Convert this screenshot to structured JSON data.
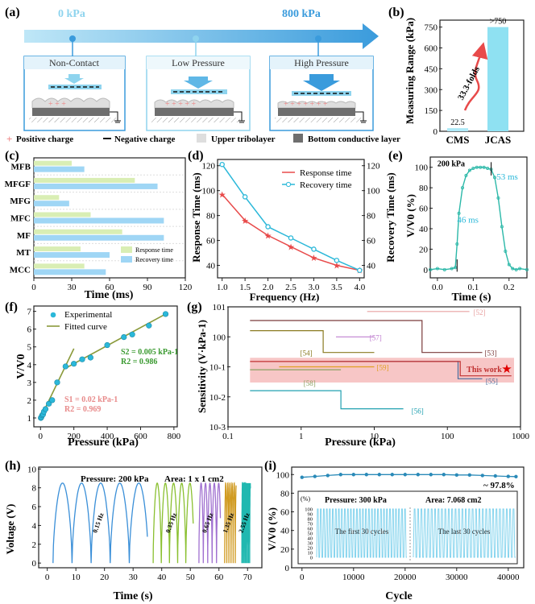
{
  "panel_labels": [
    "(a)",
    "(b)",
    "(c)",
    "(d)",
    "(e)",
    "(f)",
    "(g)",
    "(h)",
    "(i)"
  ],
  "colors": {
    "cyan": "#2bb8d9",
    "light_cyan": "#8fe1f2",
    "blue_arrow": "#3a9bdc",
    "red": "#e84a4a",
    "green": "#3a9a30",
    "light_green": "#d9eeb4",
    "light_blue": "#9fd6f5",
    "pink_band": "#f6bcbc"
  },
  "panel_a": {
    "pressure_start": "0 kPa",
    "pressure_end": "800 kPa",
    "states": [
      "Non-Contact",
      "Low Pressure",
      "High Pressure"
    ],
    "legend": [
      "Positive charge",
      "Negative charge",
      "Upper tribolayer",
      "Bottom conductive layer"
    ]
  },
  "chart_data": [
    {
      "panel": "b",
      "type": "bar",
      "ylabel": "Measuring Range (kPa)",
      "categories": [
        "CMS",
        "JCAS"
      ],
      "values": [
        22.5,
        750
      ],
      "value_labels": [
        "22.5",
        ">750"
      ],
      "annotation": "33.3-folds",
      "ylim": [
        0,
        800
      ],
      "yticks": [
        "0",
        "150",
        "300",
        "450",
        "600",
        "750"
      ]
    },
    {
      "panel": "c",
      "type": "bar",
      "orientation": "horizontal",
      "xlabel": "Time (ms)",
      "xlim": [
        0,
        120
      ],
      "xticks": [
        "0",
        "30",
        "60",
        "90",
        "120"
      ],
      "categories": [
        "MFB",
        "MFGF",
        "MFG",
        "MFC",
        "MF",
        "MT",
        "MCC"
      ],
      "series": [
        {
          "name": "Response time",
          "values": [
            30,
            80,
            20,
            45,
            70,
            37,
            40
          ]
        },
        {
          "name": "Recovery time",
          "values": [
            40,
            98,
            28,
            103,
            103,
            60,
            57
          ]
        }
      ]
    },
    {
      "panel": "d",
      "type": "line",
      "xlabel": "Frequency (Hz)",
      "ylabel": "Response Time (ms)",
      "ylabel_right": "Recovery Time (ms)",
      "xlim": [
        0.9,
        4.1
      ],
      "ylim": [
        30,
        125
      ],
      "xticks": [
        "1.0",
        "1.5",
        "2.0",
        "2.5",
        "3.0",
        "3.5",
        "4.0"
      ],
      "yticks": [
        "40",
        "60",
        "80",
        "100",
        "120"
      ],
      "x": [
        1.0,
        1.5,
        2.0,
        2.5,
        3.0,
        3.5,
        4.0
      ],
      "series": [
        {
          "name": "Response time",
          "values": [
            97,
            76,
            64,
            55,
            46,
            40,
            36
          ]
        },
        {
          "name": "Recovery time",
          "values": [
            121,
            95,
            71,
            62,
            53,
            44,
            36
          ]
        }
      ]
    },
    {
      "panel": "e",
      "type": "line",
      "xlabel": "Time (s)",
      "ylabel": "V/V0 (%)",
      "xlim": [
        -0.02,
        0.25
      ],
      "ylim": [
        -8,
        110
      ],
      "xticks": [
        "0.0",
        "0.1",
        "0.2"
      ],
      "yticks": [
        "0",
        "20",
        "40",
        "60",
        "80",
        "100"
      ],
      "x": [
        -0.02,
        0.0,
        0.02,
        0.04,
        0.05,
        0.055,
        0.06,
        0.07,
        0.08,
        0.09,
        0.1,
        0.11,
        0.12,
        0.13,
        0.14,
        0.15,
        0.16,
        0.17,
        0.18,
        0.19,
        0.2,
        0.21,
        0.22,
        0.23,
        0.25
      ],
      "values": [
        0,
        1,
        0,
        1,
        2,
        25,
        55,
        80,
        92,
        97,
        99,
        100,
        100,
        100,
        99,
        98,
        90,
        70,
        42,
        18,
        5,
        1,
        0,
        1,
        0
      ],
      "annotations": [
        "200 kPa",
        "53 ms",
        "46 ms"
      ]
    },
    {
      "panel": "f",
      "type": "scatter",
      "xlabel": "Pressure (kPa)",
      "ylabel": "V/V0",
      "xlim": [
        -40,
        820
      ],
      "ylim": [
        0.5,
        7.3
      ],
      "xticks": [
        "0",
        "200",
        "400",
        "600",
        "800"
      ],
      "yticks": [
        "1",
        "2",
        "3",
        "4",
        "5",
        "6",
        "7"
      ],
      "x": [
        2,
        5,
        10,
        15,
        20,
        30,
        50,
        70,
        100,
        150,
        200,
        250,
        300,
        400,
        500,
        550,
        650,
        750
      ],
      "values": [
        1.0,
        1.05,
        1.15,
        1.2,
        1.35,
        1.5,
        1.8,
        2.0,
        3.0,
        3.9,
        4.05,
        4.3,
        4.4,
        5.1,
        5.55,
        5.7,
        6.2,
        6.85
      ],
      "legend": [
        "Experimental",
        "Fitted curve"
      ],
      "fits": [
        {
          "label": "S1 = 0.02 kPa-1",
          "r2": "R2 = 0.969"
        },
        {
          "label": "S2 = 0.005 kPa-1",
          "r2": "R2 = 0.986"
        }
      ]
    },
    {
      "panel": "g",
      "type": "line",
      "xscale": "log",
      "yscale": "log",
      "xlabel": "Pressure (kPa)",
      "ylabel": "Sensitivity (V·kPa-1)",
      "xlim": [
        0.1,
        1000
      ],
      "ylim": [
        0.001,
        10
      ],
      "xticks": [
        "0.1",
        "1",
        "10",
        "100",
        "1000"
      ],
      "yticks": [
        "10-3",
        "10-2",
        "10-1",
        "100",
        "101"
      ],
      "series": [
        {
          "name": "[52]",
          "x": [
            8,
            200
          ],
          "values": [
            7,
            7
          ]
        },
        {
          "name": "[53]",
          "x": [
            0.2,
            45,
            45,
            300
          ],
          "values": [
            3.5,
            3.5,
            0.3,
            0.3
          ]
        },
        {
          "name": "[57]",
          "x": [
            3,
            10
          ],
          "values": [
            1.0,
            1.0
          ]
        },
        {
          "name": "[54]",
          "x": [
            0.2,
            2,
            2,
            10
          ],
          "values": [
            1.6,
            1.6,
            0.3,
            0.3
          ]
        },
        {
          "name": "[59]",
          "x": [
            0.5,
            10
          ],
          "values": [
            0.1,
            0.1
          ]
        },
        {
          "name": "[55]",
          "x": [
            2.5,
            140,
            140,
            300
          ],
          "values": [
            0.15,
            0.15,
            0.04,
            0.04
          ]
        },
        {
          "name": "[58]",
          "x": [
            0.2,
            3.5
          ],
          "values": [
            0.08,
            0.08
          ]
        },
        {
          "name": "[56]",
          "x": [
            0.2,
            3.5,
            3.5,
            25
          ],
          "values": [
            0.016,
            0.016,
            0.004,
            0.004
          ]
        },
        {
          "name": "This work",
          "x": [
            0.2,
            150,
            150,
            750
          ],
          "values": [
            0.15,
            0.15,
            0.05,
            0.05
          ]
        }
      ]
    },
    {
      "panel": "h",
      "type": "line",
      "xlabel": "Time (s)",
      "ylabel": "Voltage (V)",
      "xlim": [
        -3,
        75
      ],
      "ylim": [
        -0.5,
        10.2
      ],
      "xticks": [
        "0",
        "10",
        "20",
        "30",
        "40",
        "50",
        "60",
        "70"
      ],
      "yticks": [
        "0",
        "2",
        "4",
        "6",
        "8",
        "10"
      ],
      "series": [
        {
          "name": "0.15 Hz",
          "t_start": 2,
          "t_end": 35,
          "frequency": 0.15,
          "amplitude": 8.5
        },
        {
          "name": "0.35 Hz",
          "t_start": 37,
          "t_end": 51,
          "frequency": 0.35,
          "amplitude": 8.5
        },
        {
          "name": "0.65 Hz",
          "t_start": 53,
          "t_end": 60.5,
          "frequency": 0.65,
          "amplitude": 8.5
        },
        {
          "name": "1.35 Hz",
          "t_start": 62,
          "t_end": 66,
          "frequency": 1.35,
          "amplitude": 8.5
        },
        {
          "name": "2.55 Hz",
          "t_start": 68,
          "t_end": 71,
          "frequency": 2.55,
          "amplitude": 8.5
        }
      ],
      "annotations": [
        "Pressure:  200 kPa",
        "Area:   1 x 1 cm2"
      ]
    },
    {
      "panel": "i",
      "type": "line",
      "xlabel": "Cycle",
      "ylabel": "V/V0 (%)",
      "xlim": [
        -2000,
        43000
      ],
      "ylim": [
        0,
        108
      ],
      "xticks": [
        "0",
        "10000",
        "20000",
        "30000",
        "40000"
      ],
      "yticks": [
        "0",
        "20",
        "40",
        "60",
        "80",
        "100"
      ],
      "x": [
        0,
        2500,
        5000,
        7500,
        10000,
        12500,
        15000,
        17500,
        20000,
        22500,
        25000,
        27500,
        30000,
        32500,
        35000,
        37500,
        40000,
        41500
      ],
      "values": [
        97,
        98,
        99,
        100,
        100,
        100,
        100,
        100,
        100,
        100,
        100,
        100,
        99.5,
        99.5,
        99,
        98.5,
        98,
        97.8
      ],
      "final_label": "~ 97.8%",
      "inset": {
        "ylabel": "(%)",
        "yticks": [
          "0",
          "25",
          "50",
          "75",
          "100"
        ],
        "ytick_labels": [
          "0",
          "10",
          "20",
          "30",
          "40",
          "50",
          "60",
          "70",
          "80",
          "90",
          "100"
        ],
        "text": [
          "Pressure:  300 kPa",
          "Area:  7.068 cm2",
          "The first 30 cycles",
          "The last 30 cycles"
        ]
      }
    }
  ]
}
